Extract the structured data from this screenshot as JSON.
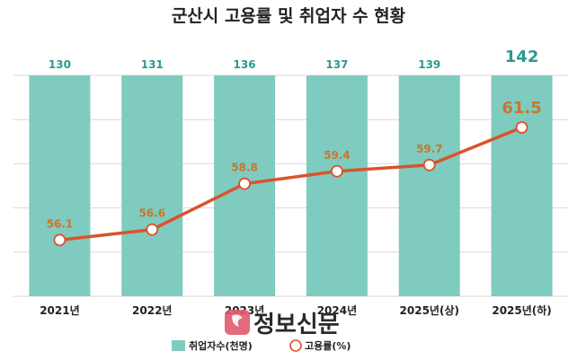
{
  "chart_data": {
    "type": "bar+line",
    "title": "군산시 고용률 및 취업자 수 현황",
    "categories": [
      "2021년",
      "2022년",
      "2023년",
      "2024년",
      "2025년(상)",
      "2025년(하)"
    ],
    "series": [
      {
        "name": "취업자수(천명)",
        "type": "bar",
        "values": [
          130,
          131,
          136,
          137,
          139,
          142
        ],
        "color": "#7fcbbf"
      },
      {
        "name": "고용률(%)",
        "type": "line",
        "values": [
          56.1,
          56.6,
          58.8,
          59.4,
          59.7,
          61.5
        ],
        "color": "#d9532b"
      }
    ],
    "label_colors": {
      "bar": "#2a9a8c",
      "line": "#c9762c"
    },
    "line_ylim": [
      53.4,
      64.0
    ],
    "grid": true,
    "legend": "bottom-center"
  },
  "watermark": {
    "text": "정보신문",
    "icon": "seal-icon"
  }
}
